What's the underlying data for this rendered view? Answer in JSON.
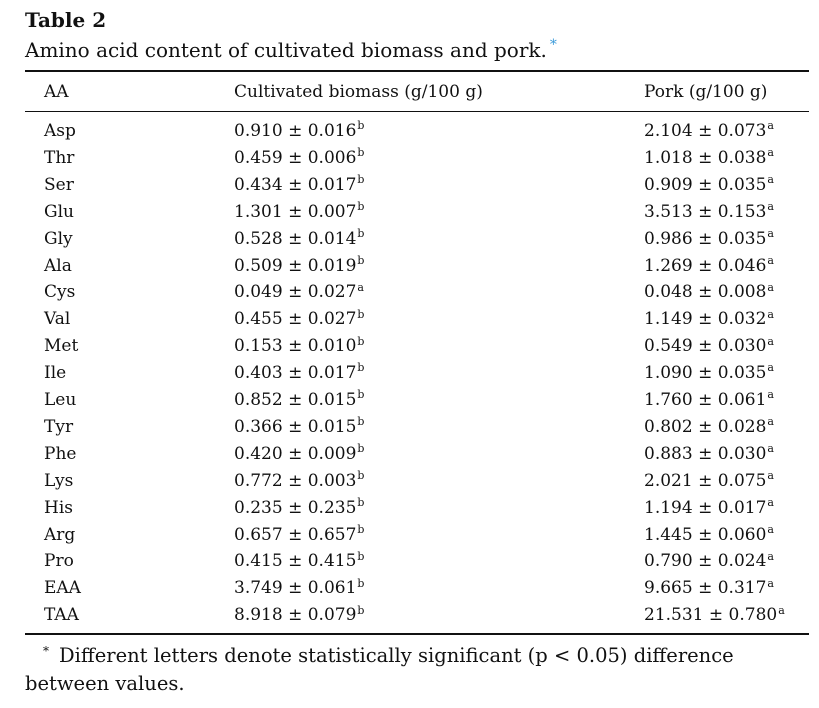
{
  "table": {
    "label": "Table 2",
    "caption": "Amino acid content of cultivated biomass and pork.",
    "caption_marker": "*",
    "headers": {
      "aa": "AA",
      "cultivated": "Cultivated biomass (g/100 g)",
      "pork": "Pork (g/100 g)"
    },
    "rows": [
      {
        "aa": "Asp",
        "cultivated": "0.910 ± 0.016",
        "cultivated_sup": "b",
        "pork": "2.104 ± 0.073",
        "pork_sup": "a"
      },
      {
        "aa": "Thr",
        "cultivated": "0.459 ± 0.006",
        "cultivated_sup": "b",
        "pork": "1.018 ± 0.038",
        "pork_sup": "a"
      },
      {
        "aa": "Ser",
        "cultivated": "0.434 ± 0.017",
        "cultivated_sup": "b",
        "pork": "0.909 ± 0.035",
        "pork_sup": "a"
      },
      {
        "aa": "Glu",
        "cultivated": "1.301 ± 0.007",
        "cultivated_sup": "b",
        "pork": "3.513 ± 0.153",
        "pork_sup": "a"
      },
      {
        "aa": "Gly",
        "cultivated": "0.528 ± 0.014",
        "cultivated_sup": "b",
        "pork": "0.986 ± 0.035",
        "pork_sup": "a"
      },
      {
        "aa": "Ala",
        "cultivated": "0.509 ± 0.019",
        "cultivated_sup": "b",
        "pork": "1.269 ± 0.046",
        "pork_sup": "a"
      },
      {
        "aa": "Cys",
        "cultivated": "0.049 ± 0.027",
        "cultivated_sup": "a",
        "pork": "0.048 ± 0.008",
        "pork_sup": "a"
      },
      {
        "aa": "Val",
        "cultivated": "0.455 ± 0.027",
        "cultivated_sup": "b",
        "pork": "1.149 ± 0.032",
        "pork_sup": "a"
      },
      {
        "aa": "Met",
        "cultivated": "0.153 ± 0.010",
        "cultivated_sup": "b",
        "pork": "0.549 ± 0.030",
        "pork_sup": "a"
      },
      {
        "aa": "Ile",
        "cultivated": "0.403 ± 0.017",
        "cultivated_sup": "b",
        "pork": "1.090 ± 0.035",
        "pork_sup": "a"
      },
      {
        "aa": "Leu",
        "cultivated": "0.852 ± 0.015",
        "cultivated_sup": "b",
        "pork": "1.760 ± 0.061",
        "pork_sup": "a"
      },
      {
        "aa": "Tyr",
        "cultivated": "0.366 ± 0.015",
        "cultivated_sup": "b",
        "pork": "0.802 ± 0.028",
        "pork_sup": "a"
      },
      {
        "aa": "Phe",
        "cultivated": "0.420 ± 0.009",
        "cultivated_sup": "b",
        "pork": "0.883 ± 0.030",
        "pork_sup": "a"
      },
      {
        "aa": "Lys",
        "cultivated": "0.772 ± 0.003",
        "cultivated_sup": "b",
        "pork": "2.021 ± 0.075",
        "pork_sup": "a"
      },
      {
        "aa": "His",
        "cultivated": "0.235 ± 0.235",
        "cultivated_sup": "b",
        "pork": "1.194 ± 0.017",
        "pork_sup": "a"
      },
      {
        "aa": "Arg",
        "cultivated": "0.657 ± 0.657",
        "cultivated_sup": "b",
        "pork": "1.445 ± 0.060",
        "pork_sup": "a"
      },
      {
        "aa": "Pro",
        "cultivated": "0.415 ± 0.415",
        "cultivated_sup": "b",
        "pork": "0.790 ± 0.024",
        "pork_sup": "a"
      },
      {
        "aa": "EAA",
        "cultivated": "3.749 ± 0.061",
        "cultivated_sup": "b",
        "pork": "9.665 ± 0.317",
        "pork_sup": "a"
      },
      {
        "aa": "TAA",
        "cultivated": "8.918 ± 0.079",
        "cultivated_sup": "b",
        "pork": "21.531 ± 0.780",
        "pork_sup": "a"
      }
    ],
    "footnote_marker": "*",
    "footnote": "Different letters denote statistically significant (p < 0.05) difference between values."
  }
}
